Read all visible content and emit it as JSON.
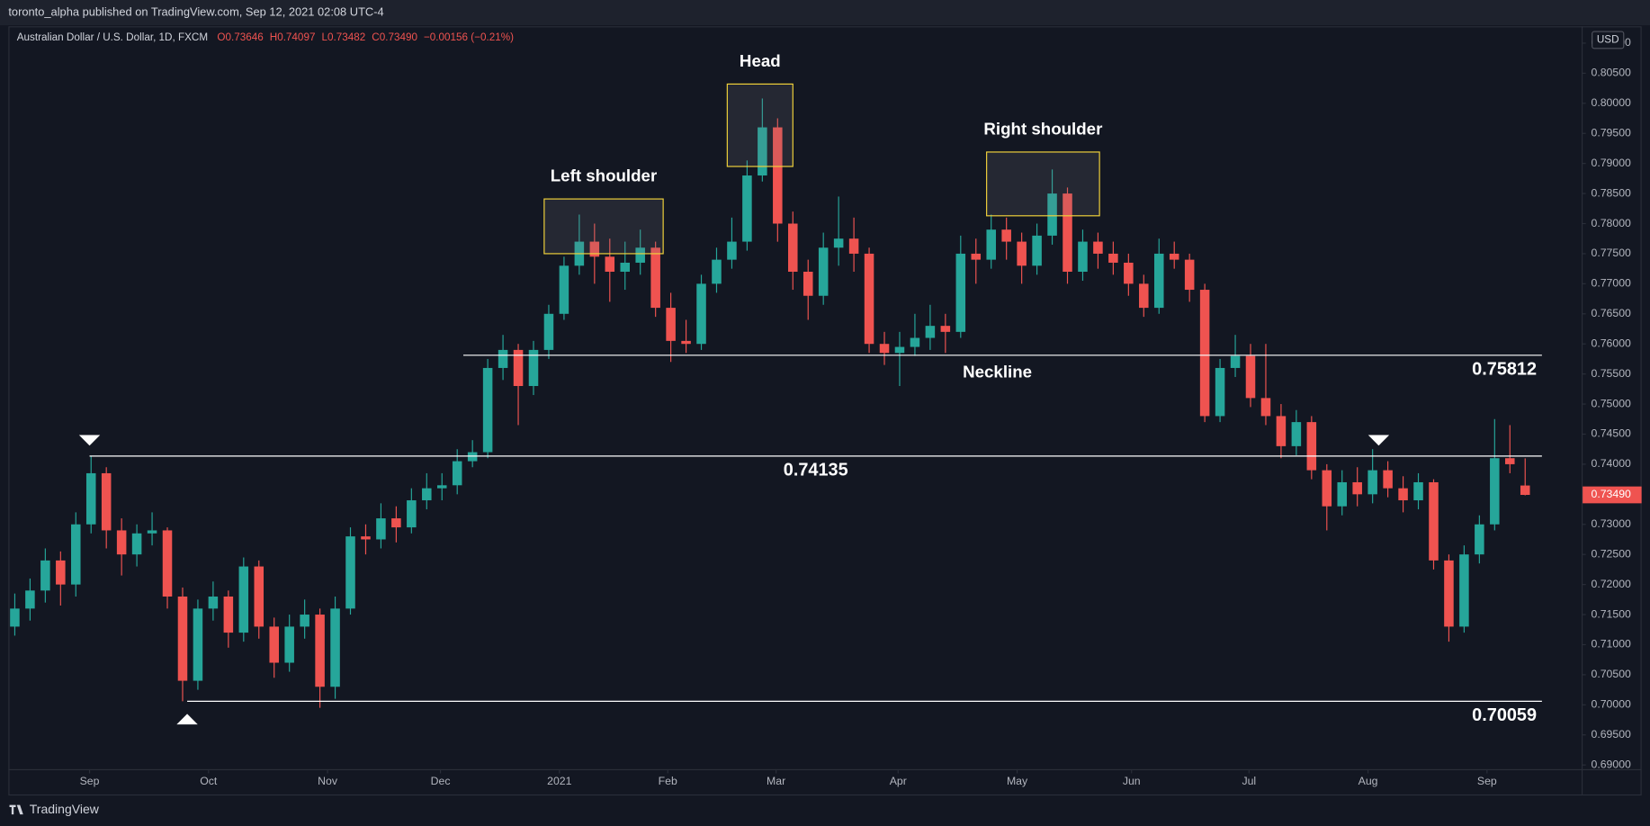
{
  "header": {
    "published": "toronto_alpha published on TradingView.com, Sep 12, 2021 02:08 UTC-4",
    "brand": "TradingView"
  },
  "chart_data": {
    "type": "candlestick",
    "symbol": "Australian Dollar / U.S. Dollar, 1D, FXCM",
    "legend": [
      "O0.73646",
      "H0.74097",
      "L0.73482",
      "C0.73490",
      "−0.00156 (−0.21%)"
    ],
    "currency": "USD",
    "last_price_label": "0.73490",
    "up_color": "#26a69a",
    "down_color": "#ef5350",
    "ohlc": [
      [
        0.713,
        0.7185,
        0.7115,
        0.716
      ],
      [
        0.716,
        0.721,
        0.714,
        0.719
      ],
      [
        0.719,
        0.726,
        0.717,
        0.724
      ],
      [
        0.724,
        0.7255,
        0.7165,
        0.72
      ],
      [
        0.72,
        0.732,
        0.718,
        0.73
      ],
      [
        0.73,
        0.74135,
        0.7285,
        0.7385
      ],
      [
        0.7385,
        0.7395,
        0.726,
        0.729
      ],
      [
        0.729,
        0.731,
        0.7215,
        0.725
      ],
      [
        0.725,
        0.73,
        0.723,
        0.7285
      ],
      [
        0.7285,
        0.732,
        0.7265,
        0.729
      ],
      [
        0.729,
        0.7295,
        0.716,
        0.718
      ],
      [
        0.718,
        0.7195,
        0.70059,
        0.704
      ],
      [
        0.704,
        0.7175,
        0.7025,
        0.716
      ],
      [
        0.716,
        0.7205,
        0.714,
        0.718
      ],
      [
        0.718,
        0.719,
        0.7095,
        0.712
      ],
      [
        0.712,
        0.7245,
        0.7105,
        0.723
      ],
      [
        0.723,
        0.724,
        0.711,
        0.713
      ],
      [
        0.713,
        0.7145,
        0.7045,
        0.707
      ],
      [
        0.707,
        0.715,
        0.7055,
        0.713
      ],
      [
        0.713,
        0.7175,
        0.711,
        0.715
      ],
      [
        0.715,
        0.716,
        0.6995,
        0.703
      ],
      [
        0.703,
        0.718,
        0.701,
        0.716
      ],
      [
        0.716,
        0.7295,
        0.715,
        0.728
      ],
      [
        0.728,
        0.73,
        0.725,
        0.7275
      ],
      [
        0.7275,
        0.7335,
        0.726,
        0.731
      ],
      [
        0.731,
        0.733,
        0.727,
        0.7295
      ],
      [
        0.7295,
        0.736,
        0.7285,
        0.734
      ],
      [
        0.734,
        0.7385,
        0.7325,
        0.736
      ],
      [
        0.736,
        0.7385,
        0.734,
        0.7365
      ],
      [
        0.7365,
        0.7425,
        0.735,
        0.7405
      ],
      [
        0.7405,
        0.744,
        0.7395,
        0.742
      ],
      [
        0.742,
        0.7575,
        0.741,
        0.756
      ],
      [
        0.756,
        0.7615,
        0.754,
        0.759
      ],
      [
        0.759,
        0.76,
        0.7465,
        0.753
      ],
      [
        0.753,
        0.7605,
        0.7515,
        0.759
      ],
      [
        0.759,
        0.7665,
        0.7575,
        0.765
      ],
      [
        0.765,
        0.7745,
        0.764,
        0.773
      ],
      [
        0.773,
        0.7815,
        0.7715,
        0.777
      ],
      [
        0.777,
        0.78,
        0.77,
        0.7745
      ],
      [
        0.7745,
        0.7775,
        0.767,
        0.772
      ],
      [
        0.772,
        0.777,
        0.769,
        0.7735
      ],
      [
        0.7735,
        0.779,
        0.7715,
        0.776
      ],
      [
        0.776,
        0.777,
        0.7645,
        0.766
      ],
      [
        0.766,
        0.7685,
        0.757,
        0.7605
      ],
      [
        0.7605,
        0.764,
        0.7585,
        0.76
      ],
      [
        0.76,
        0.7715,
        0.759,
        0.77
      ],
      [
        0.77,
        0.776,
        0.7685,
        0.774
      ],
      [
        0.774,
        0.781,
        0.7725,
        0.777
      ],
      [
        0.777,
        0.7905,
        0.7755,
        0.788
      ],
      [
        0.788,
        0.8008,
        0.787,
        0.796
      ],
      [
        0.796,
        0.7975,
        0.777,
        0.78
      ],
      [
        0.78,
        0.782,
        0.769,
        0.772
      ],
      [
        0.772,
        0.774,
        0.764,
        0.768
      ],
      [
        0.768,
        0.7785,
        0.7665,
        0.776
      ],
      [
        0.776,
        0.7845,
        0.773,
        0.7775
      ],
      [
        0.7775,
        0.781,
        0.772,
        0.775
      ],
      [
        0.775,
        0.776,
        0.7585,
        0.76
      ],
      [
        0.76,
        0.762,
        0.7565,
        0.7585
      ],
      [
        0.7585,
        0.762,
        0.753,
        0.7595
      ],
      [
        0.7595,
        0.765,
        0.758,
        0.761
      ],
      [
        0.761,
        0.7665,
        0.759,
        0.763
      ],
      [
        0.763,
        0.765,
        0.7585,
        0.762
      ],
      [
        0.762,
        0.778,
        0.761,
        0.775
      ],
      [
        0.775,
        0.7775,
        0.77,
        0.774
      ],
      [
        0.774,
        0.7815,
        0.7725,
        0.779
      ],
      [
        0.779,
        0.781,
        0.774,
        0.777
      ],
      [
        0.777,
        0.7785,
        0.77,
        0.773
      ],
      [
        0.773,
        0.78,
        0.7715,
        0.778
      ],
      [
        0.778,
        0.789,
        0.7765,
        0.785
      ],
      [
        0.785,
        0.786,
        0.77,
        0.772
      ],
      [
        0.772,
        0.779,
        0.7705,
        0.777
      ],
      [
        0.777,
        0.7785,
        0.7725,
        0.775
      ],
      [
        0.775,
        0.777,
        0.7715,
        0.7735
      ],
      [
        0.7735,
        0.775,
        0.768,
        0.77
      ],
      [
        0.77,
        0.7715,
        0.7645,
        0.766
      ],
      [
        0.766,
        0.7775,
        0.765,
        0.775
      ],
      [
        0.775,
        0.777,
        0.7725,
        0.774
      ],
      [
        0.774,
        0.775,
        0.767,
        0.769
      ],
      [
        0.769,
        0.77,
        0.747,
        0.748
      ],
      [
        0.748,
        0.7575,
        0.747,
        0.756
      ],
      [
        0.756,
        0.7615,
        0.7545,
        0.758
      ],
      [
        0.758,
        0.76,
        0.7495,
        0.751
      ],
      [
        0.751,
        0.76,
        0.7465,
        0.748
      ],
      [
        0.748,
        0.75,
        0.741,
        0.743
      ],
      [
        0.743,
        0.749,
        0.7415,
        0.747
      ],
      [
        0.747,
        0.748,
        0.7375,
        0.739
      ],
      [
        0.739,
        0.74,
        0.729,
        0.733
      ],
      [
        0.733,
        0.739,
        0.7315,
        0.737
      ],
      [
        0.737,
        0.7395,
        0.733,
        0.735
      ],
      [
        0.735,
        0.7425,
        0.7335,
        0.739
      ],
      [
        0.739,
        0.7405,
        0.7345,
        0.736
      ],
      [
        0.736,
        0.738,
        0.732,
        0.734
      ],
      [
        0.734,
        0.7385,
        0.7325,
        0.737
      ],
      [
        0.737,
        0.7375,
        0.7225,
        0.724
      ],
      [
        0.724,
        0.725,
        0.7105,
        0.713
      ],
      [
        0.713,
        0.7265,
        0.712,
        0.725
      ],
      [
        0.725,
        0.7315,
        0.7235,
        0.73
      ],
      [
        0.73,
        0.7475,
        0.729,
        0.741
      ],
      [
        0.741,
        0.7465,
        0.7385,
        0.74
      ],
      [
        0.73646,
        0.74097,
        0.73482,
        0.7349
      ]
    ],
    "xlim": [
      -0.28,
      102.7
    ],
    "xticks": [
      {
        "value": 4.9,
        "label": "Sep"
      },
      {
        "value": 12.7,
        "label": "Oct"
      },
      {
        "value": 20.5,
        "label": "Nov"
      },
      {
        "value": 27.9,
        "label": "Dec"
      },
      {
        "value": 35.7,
        "label": "2021"
      },
      {
        "value": 42.8,
        "label": "Feb"
      },
      {
        "value": 49.9,
        "label": "Mar"
      },
      {
        "value": 57.9,
        "label": "Apr"
      },
      {
        "value": 65.7,
        "label": "May"
      },
      {
        "value": 73.2,
        "label": "Jun"
      },
      {
        "value": 80.9,
        "label": "Jul"
      },
      {
        "value": 88.7,
        "label": "Aug"
      },
      {
        "value": 96.5,
        "label": "Sep"
      }
    ],
    "ylim": [
      0.6893,
      0.8128
    ],
    "yticks": [
      {
        "value": 0.69,
        "label": "0.69000"
      },
      {
        "value": 0.695,
        "label": "0.69500"
      },
      {
        "value": 0.7,
        "label": "0.70000"
      },
      {
        "value": 0.705,
        "label": "0.70500"
      },
      {
        "value": 0.71,
        "label": "0.71000"
      },
      {
        "value": 0.715,
        "label": "0.71500"
      },
      {
        "value": 0.72,
        "label": "0.72000"
      },
      {
        "value": 0.725,
        "label": "0.72500"
      },
      {
        "value": 0.73,
        "label": "0.73000"
      },
      {
        "value": 0.735,
        "label": "0.73500"
      },
      {
        "value": 0.74,
        "label": "0.74000"
      },
      {
        "value": 0.745,
        "label": "0.74500"
      },
      {
        "value": 0.75,
        "label": "0.75000"
      },
      {
        "value": 0.755,
        "label": "0.75500"
      },
      {
        "value": 0.76,
        "label": "0.76000"
      },
      {
        "value": 0.765,
        "label": "0.76500"
      },
      {
        "value": 0.77,
        "label": "0.77000"
      },
      {
        "value": 0.775,
        "label": "0.77500"
      },
      {
        "value": 0.78,
        "label": "0.78000"
      },
      {
        "value": 0.785,
        "label": "0.78500"
      },
      {
        "value": 0.79,
        "label": "0.79000"
      },
      {
        "value": 0.795,
        "label": "0.79500"
      },
      {
        "value": 0.8,
        "label": "0.80000"
      },
      {
        "value": 0.805,
        "label": "0.80500"
      },
      {
        "value": 0.81,
        "label": "0.81000"
      }
    ],
    "grid": false,
    "levels": [
      {
        "value": 0.75812,
        "from": 29.4,
        "to": 100.1,
        "label_align": "right",
        "name": "Neckline"
      },
      {
        "value": 0.74135,
        "from": 4.9,
        "to": 100.1,
        "label_align": "center"
      },
      {
        "value": 0.70059,
        "from": 11.3,
        "to": 100.1,
        "label_align": "right"
      }
    ],
    "boxes": [
      {
        "label": "Left shoulder",
        "x": [
          34.7,
          42.5
        ],
        "y": [
          0.775,
          0.7841
        ]
      },
      {
        "label": "Head",
        "x": [
          46.7,
          51.0
        ],
        "y": [
          0.7895,
          0.8032
        ]
      },
      {
        "label": "Right shoulder",
        "x": [
          63.7,
          71.1
        ],
        "y": [
          0.7813,
          0.7919
        ]
      }
    ],
    "markers": [
      {
        "x": 4.9,
        "value": 0.74135,
        "dir": "down"
      },
      {
        "x": 11.3,
        "value": 0.70059,
        "dir": "up"
      },
      {
        "x": 89.4,
        "value": 0.74135,
        "dir": "down"
      }
    ]
  }
}
